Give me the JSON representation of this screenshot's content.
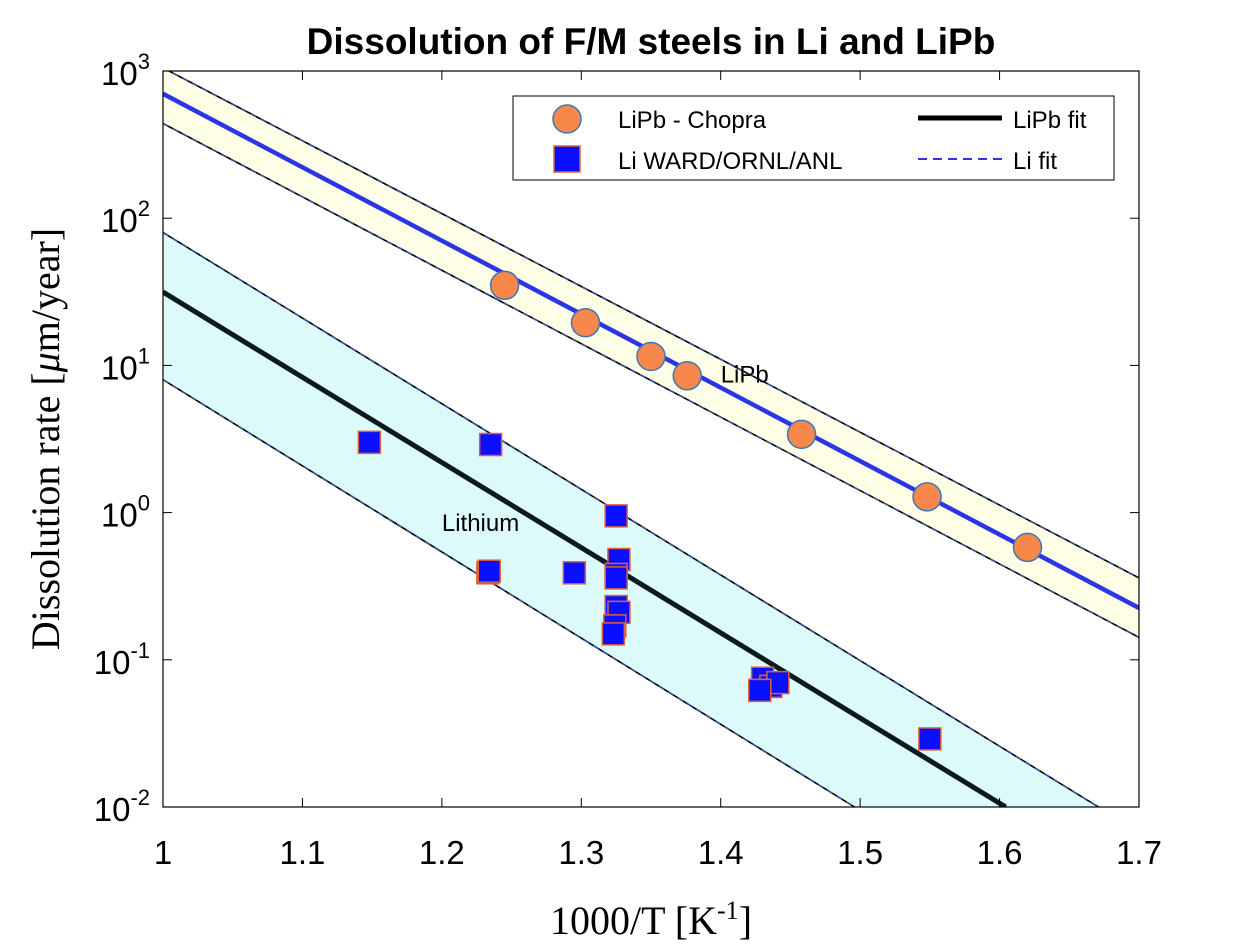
{
  "chart_data": {
    "type": "scatter",
    "title": "Dissolution of F/M steels in Li and LiPb",
    "xlabel": {
      "base": "1000/T [K",
      "sup": "-1",
      "tail": "]"
    },
    "ylabel": {
      "pre": "Dissolution rate [",
      "mu": "μ",
      "post": "m/year]"
    },
    "xlim": [
      1.0,
      1.7
    ],
    "ylim": [
      0.01,
      1000
    ],
    "yscale": "log",
    "xticks": [
      1.0,
      1.1,
      1.2,
      1.3,
      1.4,
      1.5,
      1.6,
      1.7
    ],
    "xtick_labels": [
      "1",
      "1.1",
      "1.2",
      "1.3",
      "1.4",
      "1.5",
      "1.6",
      "1.7"
    ],
    "yticks": [
      0.01,
      0.1,
      1,
      10,
      100,
      1000
    ],
    "ytick_labels": [
      {
        "base": "10",
        "exp": "-2"
      },
      {
        "base": "10",
        "exp": "-1"
      },
      {
        "base": "10",
        "exp": "0"
      },
      {
        "base": "10",
        "exp": "1"
      },
      {
        "base": "10",
        "exp": "2"
      },
      {
        "base": "10",
        "exp": "3"
      }
    ],
    "legend_position": "top-right",
    "colors": {
      "lipb_marker_fill": "#f7874a",
      "lipb_marker_edge": "#3b78b5",
      "li_marker_fill": "#0a10ff",
      "li_marker_edge": "#e0603a",
      "upper_line": "#2a36e6",
      "lower_line": "#0b1a1a",
      "upper_band": "#fefee6",
      "lower_band": "#dcfafa",
      "band_edge": "#1a1a66"
    },
    "series": [
      {
        "name": "LiPb - Chopra",
        "marker": "circle",
        "points": [
          [
            1.245,
            35
          ],
          [
            1.303,
            19.5
          ],
          [
            1.35,
            11.5
          ],
          [
            1.376,
            8.5
          ],
          [
            1.458,
            3.4
          ],
          [
            1.548,
            1.28
          ],
          [
            1.62,
            0.58
          ]
        ]
      },
      {
        "name": "Li WARD/ORNL/ANL",
        "marker": "square",
        "points": [
          [
            1.148,
            3.0
          ],
          [
            1.235,
            2.9
          ],
          [
            1.325,
            0.95
          ],
          [
            1.327,
            0.48
          ],
          [
            1.325,
            0.38
          ],
          [
            1.325,
            0.36
          ],
          [
            1.233,
            0.39
          ],
          [
            1.234,
            0.4
          ],
          [
            1.295,
            0.39
          ],
          [
            1.325,
            0.23
          ],
          [
            1.327,
            0.21
          ],
          [
            1.324,
            0.17
          ],
          [
            1.323,
            0.15
          ],
          [
            1.43,
            0.075
          ],
          [
            1.436,
            0.066
          ],
          [
            1.441,
            0.07
          ],
          [
            1.428,
            0.062
          ],
          [
            1.55,
            0.029
          ]
        ]
      },
      {
        "name": "LiPb fit",
        "kind": "line",
        "points": [
          [
            1.0,
            31.5
          ],
          [
            1.6044,
            0.01
          ]
        ]
      },
      {
        "name": "Li fit",
        "kind": "line",
        "points": [
          [
            1.0,
            700
          ],
          [
            1.7,
            0.225
          ]
        ]
      }
    ],
    "bands": [
      {
        "id": "upper",
        "upper": [
          [
            1.0,
            1050
          ],
          [
            1.7,
            0.36
          ]
        ],
        "lower": [
          [
            1.0,
            440
          ],
          [
            1.7,
            0.142
          ]
        ]
      },
      {
        "id": "lower",
        "upper": [
          [
            1.0,
            80
          ],
          [
            1.671,
            0.01
          ]
        ],
        "lower": [
          [
            1.0,
            8
          ],
          [
            1.496,
            0.01
          ]
        ]
      }
    ],
    "annotations": [
      {
        "text": "LiPb",
        "x": 1.4,
        "y": 8.8
      },
      {
        "text": "Lithium",
        "x": 1.2,
        "y": 0.86
      }
    ]
  }
}
